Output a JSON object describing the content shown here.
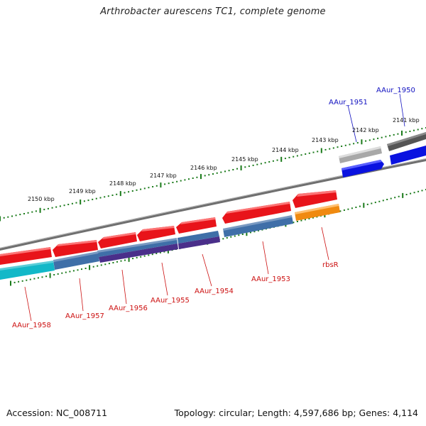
{
  "title": "Arthrobacter aurescens TC1, complete genome",
  "accession": "Accession: NC_008711",
  "summary": "Topology: circular; Length: 4,597,686 bp; Genes: 4,114",
  "colors": {
    "backbone": "#7f7f7f",
    "tick": "#1a7a1a",
    "forward_label": "#1010c0",
    "reverse_label": "#cc1010",
    "gene_red": "#e8141a",
    "gene_blue": "#0a12e0",
    "gene_gray": "#a8a8a8",
    "gene_darkgray": "#555555",
    "gene_steel": "#3f6fa8",
    "gene_cyan": "#12b8c8",
    "gene_purple": "#4a2f8a",
    "gene_orange": "#f08a10"
  },
  "tick_labels": [
    "2141 kbp",
    "2142 kbp",
    "2143 kbp",
    "2144 kbp",
    "2145 kbp",
    "2146 kbp",
    "2147 kbp",
    "2148 kbp",
    "2149 kbp",
    "2150 kbp"
  ],
  "gene_labels": [
    "AAur_1950",
    "AAur_1951",
    "rbsR",
    "AAur_1953",
    "AAur_1954",
    "AAur_1955",
    "AAur_1956",
    "AAur_1957",
    "AAur_1958"
  ]
}
